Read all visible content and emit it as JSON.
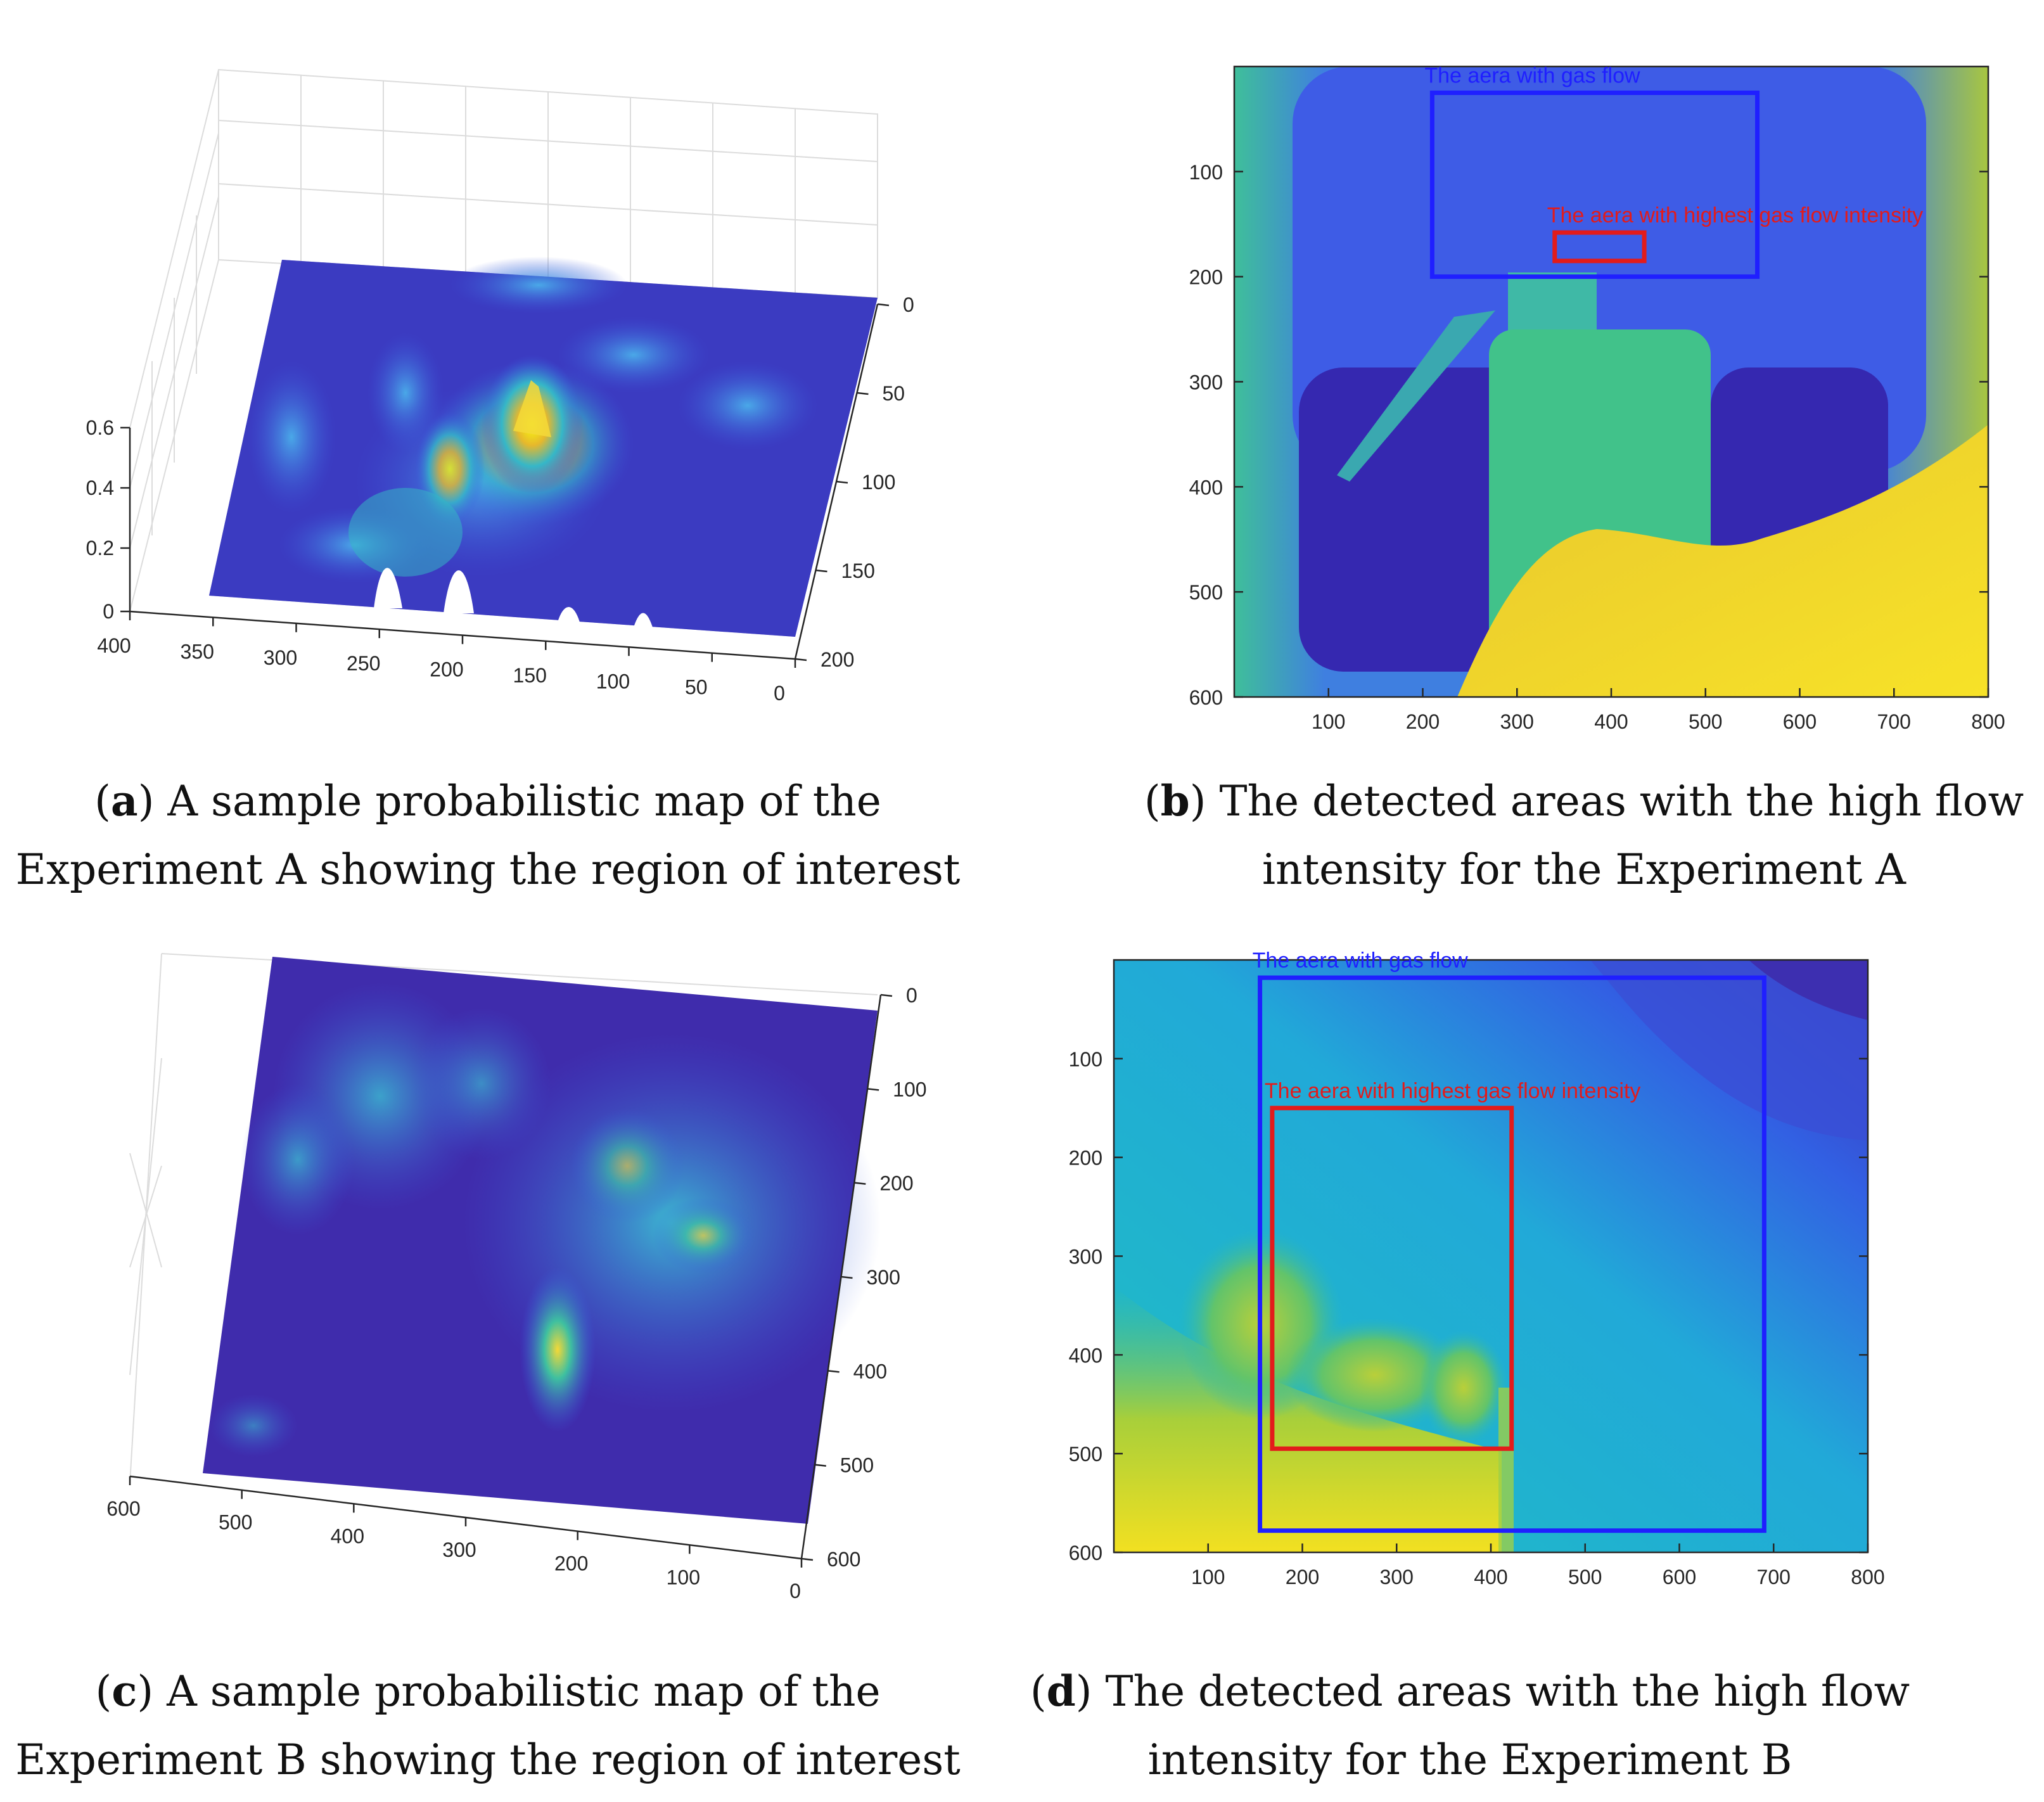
{
  "colors": {
    "parula_dark": "#3e26a8",
    "parula_blue": "#2f63e8",
    "parula_cyan": "#19b2d2",
    "parula_green": "#4cc37f",
    "parula_yellow": "#f9fb0e",
    "box_gas_flow": "#1f1fff",
    "box_highest": "#e31b1b"
  },
  "panels": [
    {
      "id": "a",
      "caption_letter": "a",
      "caption_line1": ") A sample probabilistic map of the",
      "caption_line2": "Experiment A showing the region of interest"
    },
    {
      "id": "b",
      "caption_letter": "b",
      "caption_line1": ") The detected areas with the high flow",
      "caption_line2": "intensity for the Experiment A"
    },
    {
      "id": "c",
      "caption_letter": "c",
      "caption_line1": ") A sample probabilistic map of the",
      "caption_line2": "Experiment B showing the region of interest"
    },
    {
      "id": "d",
      "caption_letter": "d",
      "caption_line1": ") The detected areas with the high flow",
      "caption_line2": "intensity for the Experiment B"
    }
  ],
  "chart_data": [
    {
      "panel": "a",
      "type": "heatmap",
      "title": "",
      "x_ticks": [
        "400",
        "350",
        "300",
        "250",
        "200",
        "150",
        "100",
        "50",
        "0"
      ],
      "y_ticks": [
        "0",
        "50",
        "100",
        "150",
        "200"
      ],
      "z_ticks": [
        "0",
        "0.2",
        "0.4",
        "0.6"
      ],
      "xlim": [
        0,
        400
      ],
      "ylim": [
        0,
        200
      ],
      "zlim": [
        0,
        0.6
      ],
      "grid": true,
      "peak_value": 0.6
    },
    {
      "panel": "b",
      "type": "heatmap",
      "x_ticks": [
        "100",
        "200",
        "300",
        "400",
        "500",
        "600",
        "700",
        "800"
      ],
      "y_ticks": [
        "100",
        "200",
        "300",
        "400",
        "500",
        "600"
      ],
      "xlim": [
        0,
        800
      ],
      "ylim": [
        0,
        600
      ],
      "annotations": [
        {
          "label": "The aera with gas flow",
          "color": "blue",
          "x0": 210,
          "y0": 25,
          "x1": 555,
          "y1": 200
        },
        {
          "label": "The aera with highest gas flow intensity",
          "color": "red",
          "x0": 340,
          "y0": 158,
          "x1": 435,
          "y1": 185
        }
      ]
    },
    {
      "panel": "c",
      "type": "heatmap",
      "x_ticks": [
        "600",
        "500",
        "400",
        "300",
        "200",
        "100",
        "0"
      ],
      "y_ticks": [
        "0",
        "100",
        "200",
        "300",
        "400",
        "500",
        "600"
      ],
      "xlim": [
        0,
        600
      ],
      "ylim": [
        0,
        600
      ],
      "grid": true
    },
    {
      "panel": "d",
      "type": "heatmap",
      "x_ticks": [
        "100",
        "200",
        "300",
        "400",
        "500",
        "600",
        "700",
        "800"
      ],
      "y_ticks": [
        "100",
        "200",
        "300",
        "400",
        "500",
        "600"
      ],
      "xlim": [
        0,
        800
      ],
      "ylim": [
        0,
        600
      ],
      "annotations": [
        {
          "label": "The aera with gas flow",
          "color": "blue",
          "x0": 155,
          "y0": 18,
          "x1": 690,
          "y1": 578
        },
        {
          "label": "The aera with highest gas flow intensity",
          "color": "red",
          "x0": 168,
          "y0": 150,
          "x1": 422,
          "y1": 495
        }
      ]
    }
  ]
}
